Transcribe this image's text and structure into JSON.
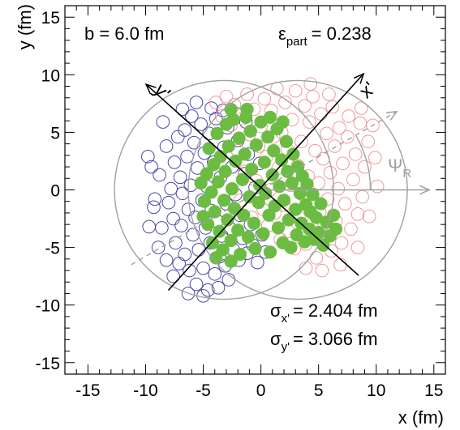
{
  "chart_data": {
    "type": "scatter",
    "title": "",
    "xlabel": "x (fm)",
    "ylabel": "y (fm)",
    "xlim": [
      -17,
      16
    ],
    "ylim": [
      -16,
      16
    ],
    "xticks": [
      -15,
      -10,
      -5,
      0,
      5,
      10,
      15
    ],
    "yticks": [
      -15,
      -10,
      -5,
      0,
      5,
      10,
      15
    ],
    "tick_labels": {
      "x": [
        "-15",
        "-10",
        "-5",
        "0",
        "5",
        "10",
        "15"
      ],
      "y": [
        "-15",
        "-10",
        "-5",
        "0",
        "5",
        "10",
        "15"
      ]
    },
    "annotations": {
      "impact": "b =  6.0 fm",
      "eps_symbol": "ε",
      "eps_sub": "part",
      "eps_value": "= 0.238",
      "psi_symbol": "Ψ",
      "psi_sub": "R",
      "sx_symbol": "σ",
      "sx_sub": "x'",
      "sx_value": "= 2.404 fm",
      "sy_symbol": "σ",
      "sy_sub": "y'",
      "sy_value": "= 3.066 fm",
      "axis_xp": "x'",
      "axis_yp": "y'"
    },
    "colors": {
      "nucleus_a": "#4848a8",
      "nucleus_b": "#f09898",
      "participants": "#6cbc44",
      "reference": "#a0a0a0"
    },
    "nucleus_a_center": [
      -3.2,
      0
    ],
    "nucleus_b_center": [
      3.2,
      0
    ],
    "nucleus_radius": 9.5,
    "event_plane_angle_deg": 30,
    "participant_plane_angle_deg": 48,
    "participant_center": [
      0,
      0.2
    ],
    "series": [
      {
        "symbol": "open-circle",
        "color": "#4848a8",
        "points": [
          [
            -9.8,
            2.9
          ],
          [
            -9.2,
            -0.8
          ],
          [
            -9.3,
            -1.5
          ],
          [
            -8.8,
            1.3
          ],
          [
            -8.6,
            -3.3
          ],
          [
            -8.9,
            -5.0
          ],
          [
            -8.2,
            3.8
          ],
          [
            -8.0,
            -1.1
          ],
          [
            -7.8,
            0.1
          ],
          [
            -7.6,
            -2.5
          ],
          [
            -7.5,
            2.4
          ],
          [
            -7.4,
            -4.6
          ],
          [
            -7.2,
            4.6
          ],
          [
            -7.1,
            -6.4
          ],
          [
            -7.0,
            1.1
          ],
          [
            -6.9,
            -3.1
          ],
          [
            -6.8,
            -0.3
          ],
          [
            -6.6,
            5.2
          ],
          [
            -6.6,
            -5.6
          ],
          [
            -6.4,
            2.9
          ],
          [
            -6.3,
            -1.7
          ],
          [
            -6.2,
            -7.0
          ],
          [
            -6.1,
            0.4
          ],
          [
            -6.0,
            6.4
          ],
          [
            -5.9,
            -3.9
          ],
          [
            -5.8,
            4.1
          ],
          [
            -5.7,
            -2.4
          ],
          [
            -5.6,
            -8.2
          ],
          [
            -5.5,
            1.9
          ],
          [
            -5.4,
            -5.2
          ],
          [
            -5.2,
            5.7
          ],
          [
            -5.1,
            -0.9
          ],
          [
            -5.0,
            -6.8
          ],
          [
            -4.9,
            3.2
          ],
          [
            -4.8,
            -3.3
          ],
          [
            -4.7,
            0.3
          ],
          [
            -4.6,
            -8.7
          ],
          [
            -4.5,
            4.9
          ],
          [
            -4.4,
            -4.6
          ],
          [
            -4.3,
            -1.8
          ],
          [
            -4.1,
            2.4
          ],
          [
            -4.0,
            -7.3
          ],
          [
            -3.9,
            6.2
          ],
          [
            -3.8,
            -2.7
          ],
          [
            -3.6,
            -5.8
          ],
          [
            -3.5,
            1.1
          ],
          [
            -3.4,
            -4.0
          ],
          [
            -3.2,
            3.7
          ],
          [
            -3.1,
            -6.6
          ],
          [
            -3.0,
            -1.2
          ],
          [
            -2.9,
            5.4
          ],
          [
            -2.8,
            -7.8
          ],
          [
            -2.6,
            -3.4
          ],
          [
            -2.5,
            2.0
          ],
          [
            -2.4,
            -5.2
          ],
          [
            -2.2,
            -0.4
          ],
          [
            -2.0,
            4.3
          ],
          [
            -1.9,
            -6.1
          ],
          [
            -1.8,
            -2.2
          ],
          [
            -1.6,
            -4.2
          ],
          [
            -1.4,
            1.4
          ],
          [
            -1.2,
            -5.5
          ],
          [
            -1.1,
            3.1
          ],
          [
            -0.9,
            -3.0
          ],
          [
            -0.7,
            -4.8
          ],
          [
            -0.5,
            0.2
          ],
          [
            -0.3,
            -6.3
          ],
          [
            -0.1,
            2.3
          ],
          [
            0.1,
            -3.9
          ],
          [
            0.4,
            -5.4
          ],
          [
            -6.3,
            -9.0
          ],
          [
            -5.0,
            -9.2
          ],
          [
            -3.7,
            -8.5
          ],
          [
            -7.6,
            -7.5
          ],
          [
            -8.2,
            -6.1
          ],
          [
            -9.7,
            -3.2
          ],
          [
            -8.5,
            5.9
          ],
          [
            -9.5,
            2.0
          ],
          [
            -6.8,
            7.0
          ],
          [
            -5.6,
            7.6
          ],
          [
            -4.3,
            7.1
          ],
          [
            -3.3,
            6.9
          ],
          [
            -2.1,
            6.6
          ],
          [
            -1.3,
            5.9
          ]
        ]
      },
      {
        "symbol": "open-circle",
        "color": "#f09898",
        "points": [
          [
            9.7,
            5.6
          ],
          [
            9.3,
            4.2
          ],
          [
            9.0,
            2.0
          ],
          [
            8.8,
            -0.6
          ],
          [
            8.6,
            5.8
          ],
          [
            8.4,
            -2.1
          ],
          [
            8.2,
            3.1
          ],
          [
            8.0,
            0.9
          ],
          [
            7.8,
            -3.4
          ],
          [
            7.6,
            6.4
          ],
          [
            7.5,
            4.6
          ],
          [
            7.3,
            -1.2
          ],
          [
            7.1,
            2.3
          ],
          [
            7.0,
            -4.6
          ],
          [
            6.8,
            5.4
          ],
          [
            6.7,
            0.1
          ],
          [
            6.5,
            -2.7
          ],
          [
            6.4,
            3.8
          ],
          [
            6.2,
            7.2
          ],
          [
            6.1,
            -5.3
          ],
          [
            6.0,
            1.5
          ],
          [
            5.8,
            -0.8
          ],
          [
            5.7,
            4.9
          ],
          [
            5.5,
            -3.9
          ],
          [
            5.4,
            2.7
          ],
          [
            5.2,
            6.6
          ],
          [
            5.1,
            -1.9
          ],
          [
            5.0,
            0.6
          ],
          [
            4.8,
            -5.9
          ],
          [
            4.7,
            3.4
          ],
          [
            4.5,
            8.1
          ],
          [
            4.4,
            -3.0
          ],
          [
            4.2,
            5.9
          ],
          [
            4.1,
            1.2
          ],
          [
            3.9,
            -4.7
          ],
          [
            3.8,
            7.3
          ],
          [
            3.6,
            -0.4
          ],
          [
            3.5,
            4.2
          ],
          [
            3.3,
            -2.4
          ],
          [
            3.2,
            2.1
          ],
          [
            3.0,
            8.6
          ],
          [
            2.9,
            -5.1
          ],
          [
            2.7,
            6.1
          ],
          [
            2.6,
            0.4
          ],
          [
            2.4,
            -3.6
          ],
          [
            2.3,
            3.5
          ],
          [
            2.1,
            7.6
          ],
          [
            2.0,
            -1.3
          ],
          [
            1.8,
            5.0
          ],
          [
            1.7,
            -4.3
          ],
          [
            1.5,
            1.9
          ],
          [
            1.4,
            8.8
          ],
          [
            1.2,
            -2.0
          ],
          [
            1.1,
            4.6
          ],
          [
            0.9,
            6.9
          ],
          [
            0.8,
            0.0
          ],
          [
            0.6,
            -3.1
          ],
          [
            0.5,
            2.9
          ],
          [
            0.3,
            7.9
          ],
          [
            0.2,
            -1.7
          ],
          [
            0.0,
            5.5
          ],
          [
            -0.2,
            3.8
          ],
          [
            -0.4,
            0.8
          ],
          [
            -0.6,
            7.0
          ],
          [
            -0.8,
            -2.4
          ],
          [
            -1.0,
            4.8
          ],
          [
            -1.2,
            8.3
          ],
          [
            -1.4,
            1.6
          ],
          [
            -1.6,
            6.2
          ],
          [
            -1.8,
            -0.9
          ],
          [
            -2.0,
            3.4
          ],
          [
            -2.3,
            7.4
          ],
          [
            -2.6,
            5.6
          ],
          [
            -3.0,
            8.1
          ],
          [
            -3.4,
            6.4
          ],
          [
            -3.9,
            7.6
          ],
          [
            6.9,
            -6.5
          ],
          [
            5.3,
            -7.0
          ],
          [
            3.9,
            -6.8
          ],
          [
            8.4,
            -5.0
          ],
          [
            9.4,
            -2.3
          ],
          [
            10.1,
            0.3
          ],
          [
            9.9,
            2.8
          ],
          [
            8.7,
            7.1
          ],
          [
            5.9,
            8.3
          ],
          [
            4.3,
            9.2
          ]
        ]
      },
      {
        "symbol": "filled-circle",
        "color": "#6cbc44",
        "points": [
          [
            -4.9,
            -1.0
          ],
          [
            -4.7,
            1.4
          ],
          [
            -4.6,
            -3.0
          ],
          [
            -4.5,
            3.6
          ],
          [
            -4.3,
            -0.2
          ],
          [
            -4.2,
            -4.6
          ],
          [
            -4.1,
            2.2
          ],
          [
            -4.0,
            -1.9
          ],
          [
            -3.8,
            4.9
          ],
          [
            -3.7,
            0.7
          ],
          [
            -3.6,
            -3.6
          ],
          [
            -3.5,
            2.9
          ],
          [
            -3.3,
            -5.2
          ],
          [
            -3.2,
            -0.9
          ],
          [
            -3.1,
            1.6
          ],
          [
            -3.0,
            5.7
          ],
          [
            -2.9,
            -2.6
          ],
          [
            -2.8,
            3.8
          ],
          [
            -2.6,
            -4.4
          ],
          [
            -2.5,
            0.1
          ],
          [
            -2.4,
            6.1
          ],
          [
            -2.3,
            -1.6
          ],
          [
            -2.2,
            2.5
          ],
          [
            -2.0,
            -3.5
          ],
          [
            -1.9,
            4.5
          ],
          [
            -1.8,
            -5.6
          ],
          [
            -1.6,
            0.9
          ],
          [
            -1.5,
            -2.2
          ],
          [
            -1.4,
            3.1
          ],
          [
            -1.3,
            6.3
          ],
          [
            -1.1,
            -4.1
          ],
          [
            -1.0,
            -0.6
          ],
          [
            -0.9,
            5.1
          ],
          [
            -0.8,
            1.8
          ],
          [
            -0.6,
            -2.9
          ],
          [
            -0.5,
            -5.1
          ],
          [
            -0.4,
            3.9
          ],
          [
            -0.2,
            -1.1
          ],
          [
            -0.1,
            0.4
          ],
          [
            0.0,
            5.9
          ],
          [
            0.2,
            -3.8
          ],
          [
            0.3,
            2.4
          ],
          [
            0.4,
            -0.3
          ],
          [
            0.6,
            4.6
          ],
          [
            0.7,
            -2.2
          ],
          [
            0.8,
            -5.4
          ],
          [
            1.0,
            1.3
          ],
          [
            1.1,
            3.4
          ],
          [
            1.2,
            -1.4
          ],
          [
            1.4,
            5.3
          ],
          [
            1.5,
            -3.3
          ],
          [
            1.6,
            0.3
          ],
          [
            1.8,
            2.6
          ],
          [
            1.9,
            -4.6
          ],
          [
            2.0,
            -0.9
          ],
          [
            2.2,
            4.2
          ],
          [
            2.3,
            1.6
          ],
          [
            2.4,
            -2.6
          ],
          [
            2.6,
            -5.0
          ],
          [
            2.7,
            0.6
          ],
          [
            2.8,
            3.1
          ],
          [
            3.0,
            -1.7
          ],
          [
            3.1,
            -3.9
          ],
          [
            3.2,
            2.0
          ],
          [
            3.4,
            -0.3
          ],
          [
            3.5,
            -2.9
          ],
          [
            3.6,
            1.2
          ],
          [
            3.8,
            -4.5
          ],
          [
            3.9,
            -1.3
          ],
          [
            4.0,
            0.5
          ],
          [
            4.2,
            -3.4
          ],
          [
            4.3,
            -1.9
          ],
          [
            4.5,
            -0.4
          ],
          [
            4.6,
            -4.3
          ],
          [
            4.8,
            -2.4
          ],
          [
            5.0,
            -3.7
          ],
          [
            5.2,
            -1.2
          ],
          [
            5.4,
            -4.8
          ],
          [
            5.7,
            -2.8
          ],
          [
            6.0,
            -4.0
          ],
          [
            6.3,
            -2.2
          ],
          [
            6.5,
            -3.4
          ],
          [
            -5.2,
            0.6
          ],
          [
            -5.0,
            -2.3
          ],
          [
            -3.9,
            -5.9
          ],
          [
            -2.6,
            -6.2
          ],
          [
            -1.2,
            7.0
          ],
          [
            -2.6,
            7.0
          ],
          [
            0.8,
            6.3
          ],
          [
            1.9,
            5.9
          ]
        ]
      }
    ]
  }
}
